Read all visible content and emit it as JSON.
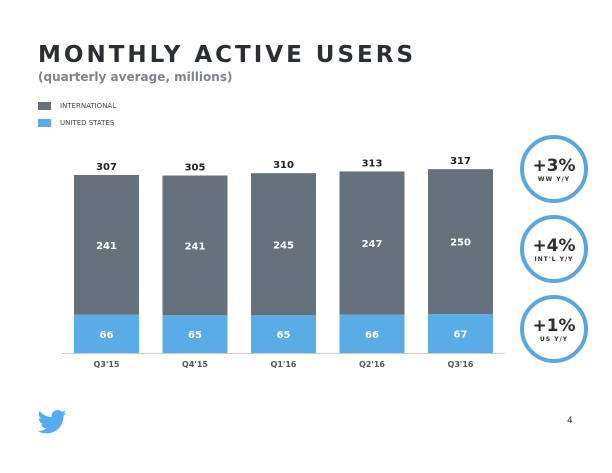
{
  "chart_data": {
    "type": "bar",
    "stacked": true,
    "title": "MONTHLY ACTIVE USERS",
    "subtitle": "(quarterly average, millions)",
    "categories": [
      "Q3'15",
      "Q4'15",
      "Q1'16",
      "Q2'16",
      "Q3'16"
    ],
    "series": [
      {
        "name": "UNITED STATES",
        "values": [
          66,
          65,
          65,
          66,
          67
        ],
        "color": "#5aace6"
      },
      {
        "name": "INTERNATIONAL",
        "values": [
          241,
          241,
          245,
          247,
          250
        ],
        "color": "#66717b"
      }
    ],
    "totals": [
      307,
      305,
      310,
      313,
      317
    ],
    "legend": "top-left",
    "grid": false
  },
  "callouts": [
    {
      "value": "+3%",
      "label": "WW Y/Y"
    },
    {
      "value": "+4%",
      "label": "INT'L Y/Y"
    },
    {
      "value": "+1%",
      "label": "US Y/Y"
    }
  ],
  "page_number": "4",
  "logo": "twitter-bird"
}
